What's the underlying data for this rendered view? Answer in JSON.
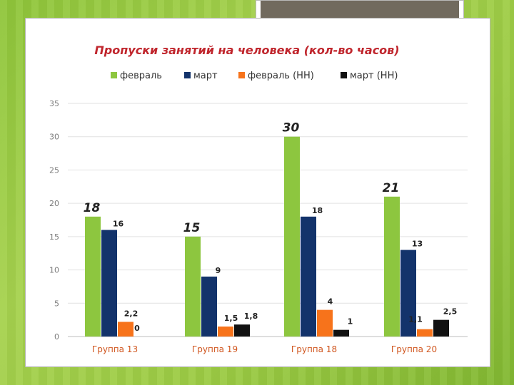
{
  "chart_data": {
    "type": "bar",
    "title": "Пропуски занятий на человека  (кол-во часов)",
    "categories": [
      "Группа 13",
      "Группа 19",
      "Группа 18",
      "Группа 20"
    ],
    "series": [
      {
        "name": "февраль",
        "color": "#8dc63f",
        "values": [
          18,
          15,
          30,
          21
        ],
        "labels": [
          "18",
          "15",
          "30",
          "21"
        ]
      },
      {
        "name": "март",
        "color": "#13336b",
        "values": [
          16,
          9,
          18,
          13
        ],
        "labels": [
          "16",
          "9",
          "18",
          "13"
        ]
      },
      {
        "name": "февраль (НН)",
        "color": "#f7731b",
        "values": [
          2.2,
          1.5,
          4,
          1.1
        ],
        "labels": [
          "2,2",
          "1,5",
          "4",
          "1,1"
        ]
      },
      {
        "name": "март (НН)",
        "color": "#111111",
        "values": [
          0,
          1.8,
          1,
          2.5
        ],
        "labels": [
          "0",
          "1,8",
          "1",
          "2,5"
        ]
      }
    ],
    "yticks": [
      "0",
      "5",
      "10",
      "15",
      "20",
      "25",
      "30",
      "35"
    ],
    "ylim": [
      0,
      35
    ],
    "grid": true,
    "legend": "top"
  }
}
